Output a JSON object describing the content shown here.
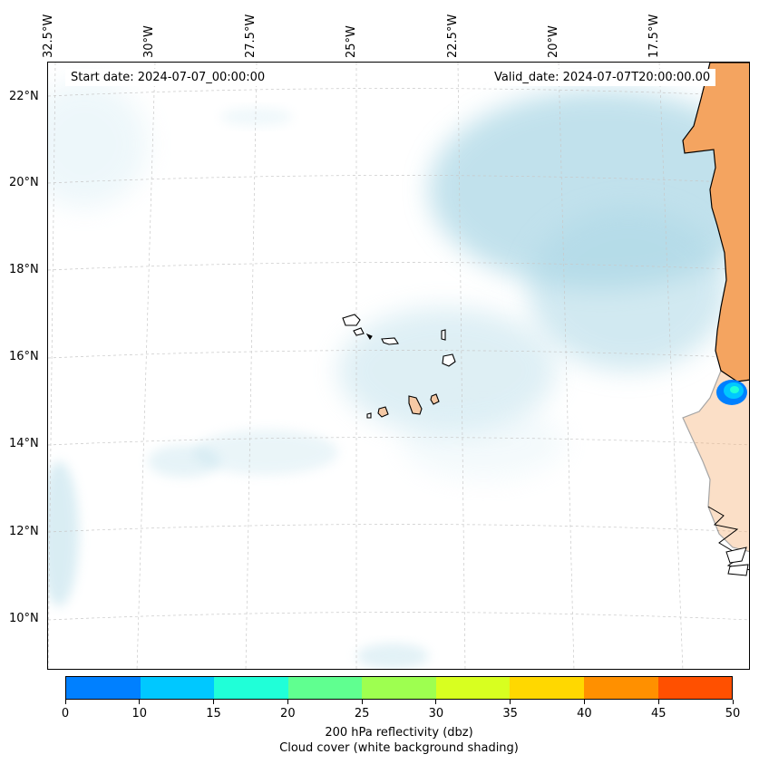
{
  "map": {
    "start_date": "Start date: 2024-07-07_00:00:00",
    "valid_date": "Valid_date: 2024-07-07T20:00:00.00",
    "lon_labels": [
      "32.5°W",
      "30°W",
      "27.5°W",
      "25°W",
      "22.5°W",
      "20°W",
      "17.5°W"
    ],
    "lat_labels": [
      "22°N",
      "20°N",
      "18°N",
      "16°N",
      "14°N",
      "12°N",
      "10°N"
    ],
    "colors": {
      "land": "#f4a460",
      "cloud": "#add8e6",
      "cloud_light": "#d9eef5",
      "island_fill": "#f5c9a5",
      "grid": "#c8c8c8"
    }
  },
  "colorbar": {
    "ticks": [
      "0",
      "10",
      "15",
      "20",
      "25",
      "30",
      "35",
      "40",
      "45",
      "50"
    ],
    "colors": [
      "#0080ff",
      "#00c8ff",
      "#20ffd8",
      "#60ff90",
      "#9eff50",
      "#d8ff20",
      "#ffd800",
      "#ff9000",
      "#ff5000"
    ],
    "label_line1": "200 hPa reflectivity (dbz)",
    "label_line2": "Cloud cover (white background shading)"
  }
}
